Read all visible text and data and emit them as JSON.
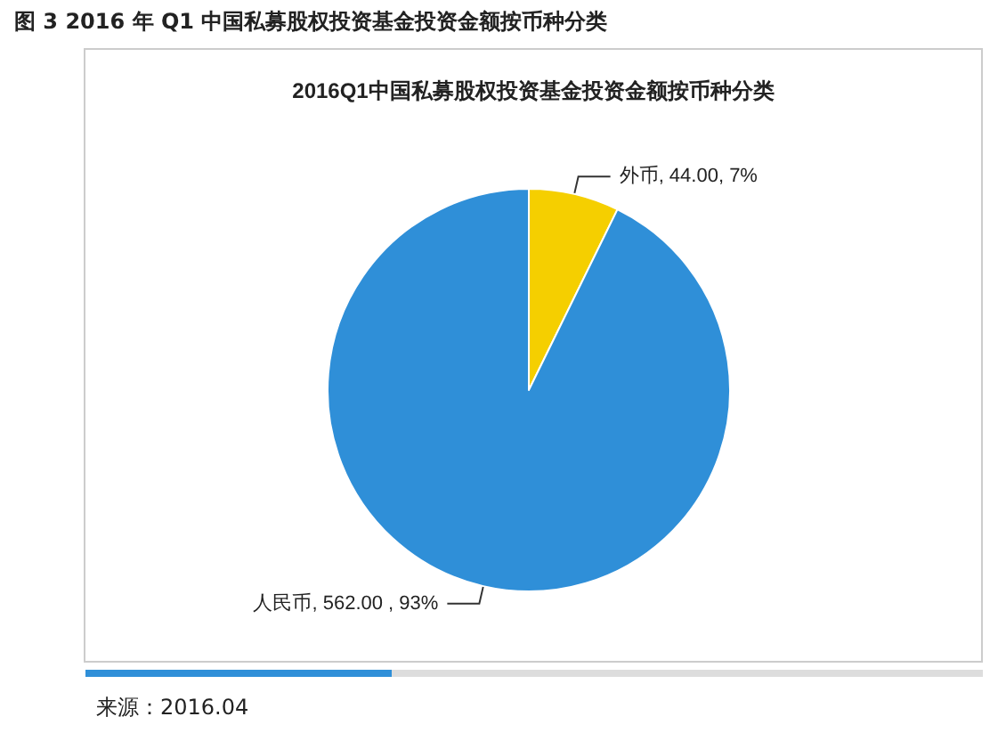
{
  "chart_data": {
    "type": "pie",
    "title": "图 3 2016 年 Q1 中国私募股权投资基金投资金额按币种分类",
    "subtitle": "2016Q1中国私募股权投资基金投资金额按币种分类",
    "categories": [
      "外币",
      "人民币"
    ],
    "values": [
      44,
      562
    ],
    "value_labels": [
      "44.00, 7%",
      "562.00 , 93%"
    ],
    "colors": [
      "#f5cf00",
      "#2f8fd8"
    ],
    "annotations": [
      "来源：2016.04"
    ],
    "legend": false
  }
}
